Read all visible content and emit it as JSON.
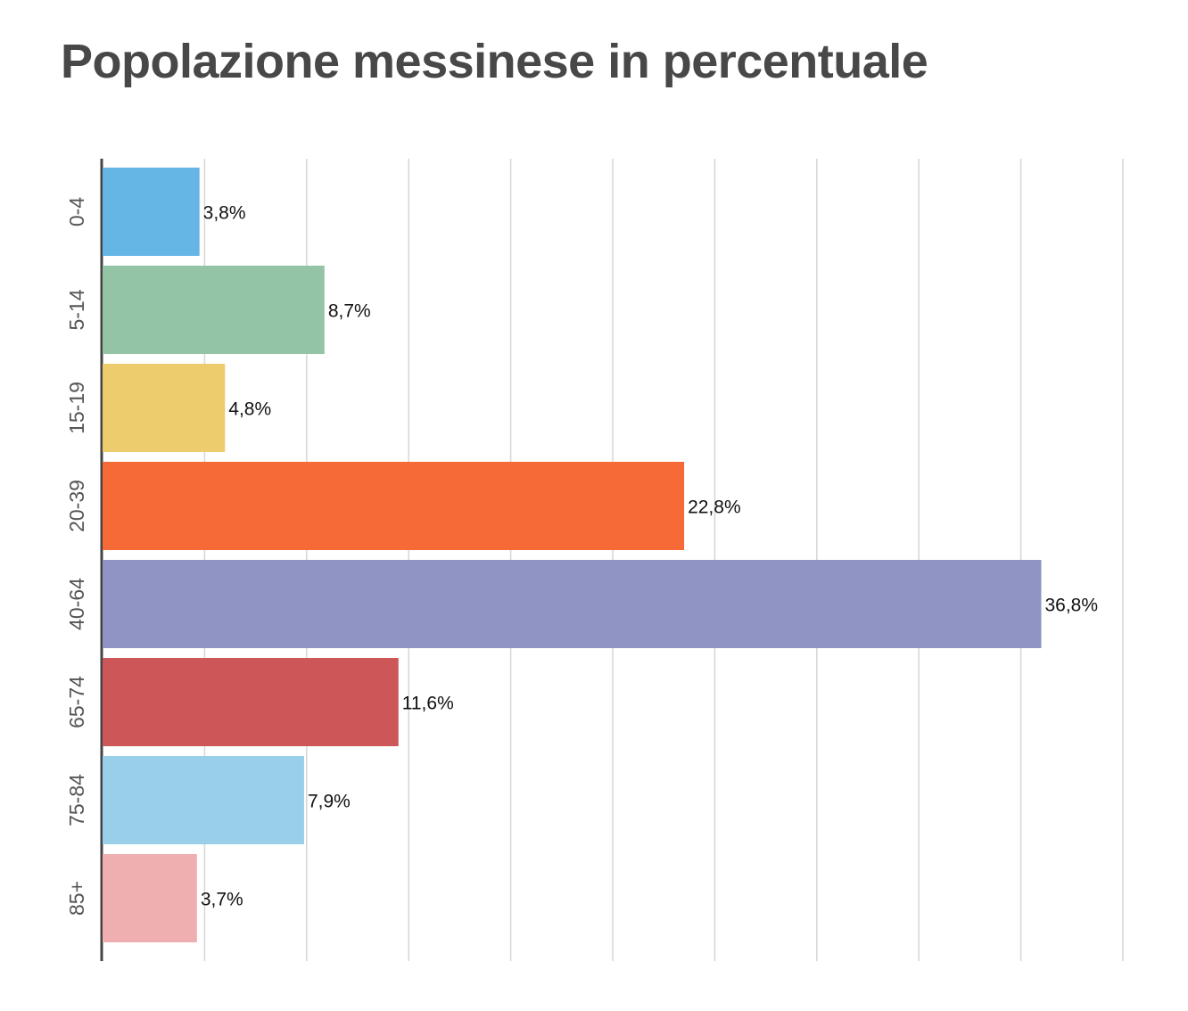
{
  "chart_data": {
    "type": "bar",
    "orientation": "horizontal",
    "title": "Popolazione messinese in percentuale",
    "categories": [
      "0-4",
      "5-14",
      "15-19",
      "20-39",
      "40-64",
      "65-74",
      "75-84",
      "85+"
    ],
    "values": [
      3.8,
      8.7,
      4.8,
      22.8,
      36.8,
      11.6,
      7.9,
      3.7
    ],
    "value_labels": [
      "3,8%",
      "8,7%",
      "4,8%",
      "22,8%",
      "36,8%",
      "11,6%",
      "7,9%",
      "3,7%"
    ],
    "colors": [
      "#65b5e5",
      "#93c4a5",
      "#edcc6d",
      "#f66a37",
      "#8f94c4",
      "#cc5658",
      "#9acfea",
      "#efafb1"
    ],
    "xlim": [
      0,
      40
    ],
    "grid": true,
    "axis_line_color": "#444444",
    "grid_color": "#d6d6d6"
  }
}
